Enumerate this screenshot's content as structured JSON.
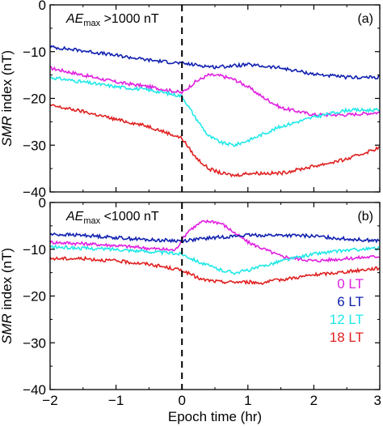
{
  "chart_data": {
    "type": "line",
    "xlabel": "Epoch time (hr)",
    "xlim": [
      -2,
      3
    ],
    "xticks": [
      "-2",
      "-1",
      "0",
      "1",
      "2",
      "3"
    ],
    "epoch_line_x": 0,
    "legend": {
      "placement": "bottom-right of panel (b)",
      "entries": [
        {
          "label": "0 LT",
          "color": "#e020e0"
        },
        {
          "label": "6 LT",
          "color": "#1020b0"
        },
        {
          "label": "12 LT",
          "color": "#20e8e8"
        },
        {
          "label": "18 LT",
          "color": "#e02020"
        }
      ]
    },
    "panels": [
      {
        "id": "a",
        "panel_label": "(a)",
        "condition_main": "AE",
        "condition_sub": "max",
        "condition_rest": " >1000 nT",
        "ylabel_italic": "SMR",
        "ylabel_rest": " index (nT)",
        "ylim": [
          -40,
          0
        ],
        "yticks": [
          "0",
          "-10",
          "-20",
          "-30",
          "-40"
        ],
        "series": [
          {
            "name": "0 LT",
            "color": "#e020e0",
            "x": [
              -2,
              -1.5,
              -1,
              -0.5,
              0,
              0.2,
              0.4,
              0.6,
              0.8,
              1.0,
              1.2,
              1.5,
              2.0,
              2.5,
              3.0
            ],
            "y": [
              -13.5,
              -15,
              -16.5,
              -17.5,
              -18.8,
              -16.5,
              -15,
              -15.2,
              -16,
              -17.5,
              -19.5,
              -22,
              -23.5,
              -23.5,
              -23
            ]
          },
          {
            "name": "6 LT",
            "color": "#1020b0",
            "x": [
              -2,
              -1.5,
              -1,
              -0.5,
              0,
              0.5,
              1.0,
              1.5,
              2.0,
              2.5,
              3.0
            ],
            "y": [
              -9,
              -9.8,
              -10.8,
              -11.8,
              -12.5,
              -13.3,
              -12.8,
              -13.5,
              -14.8,
              -15.5,
              -15.5
            ]
          },
          {
            "name": "12 LT",
            "color": "#20e8e8",
            "x": [
              -2,
              -1.5,
              -1,
              -0.5,
              0,
              0.2,
              0.4,
              0.6,
              0.8,
              1.0,
              1.5,
              2.0,
              2.5,
              3.0
            ],
            "y": [
              -15.5,
              -16.5,
              -17.5,
              -18.2,
              -19.5,
              -24,
              -28,
              -29.5,
              -30,
              -29,
              -26,
              -24,
              -22.5,
              -22.5
            ]
          },
          {
            "name": "18 LT",
            "color": "#e02020",
            "x": [
              -2,
              -1.5,
              -1,
              -0.5,
              0,
              0.2,
              0.4,
              0.6,
              0.8,
              1.0,
              1.5,
              2.0,
              2.5,
              3.0
            ],
            "y": [
              -21.5,
              -22.8,
              -24.5,
              -26,
              -28.5,
              -32.5,
              -35,
              -36,
              -36.5,
              -36,
              -36,
              -34.5,
              -33,
              -30.5
            ]
          }
        ]
      },
      {
        "id": "b",
        "panel_label": "(b)",
        "condition_main": "AE",
        "condition_sub": "max",
        "condition_rest": " <1000 nT",
        "ylabel_italic": "SMR",
        "ylabel_rest": " index (nT)",
        "ylim": [
          -40,
          0
        ],
        "yticks": [
          "0",
          "-10",
          "-20",
          "-30",
          "-40"
        ],
        "series": [
          {
            "name": "0 LT",
            "color": "#e020e0",
            "x": [
              -2,
              -1.5,
              -1,
              -0.5,
              -0.1,
              0,
              0.1,
              0.3,
              0.45,
              0.6,
              0.8,
              1.0,
              1.5,
              2.0,
              2.5,
              3.0
            ],
            "y": [
              -8.5,
              -8.8,
              -9.2,
              -9.8,
              -10.2,
              -8,
              -6,
              -4.2,
              -4,
              -4.5,
              -6.5,
              -8.5,
              -11.5,
              -12.5,
              -12,
              -11.5
            ]
          },
          {
            "name": "6 LT",
            "color": "#1020b0",
            "x": [
              -2,
              -1.5,
              -1,
              -0.5,
              0,
              0.5,
              1.0,
              1.5,
              2.0,
              2.5,
              3.0
            ],
            "y": [
              -6.8,
              -7,
              -7.5,
              -8,
              -8.2,
              -7.5,
              -7,
              -7,
              -7.2,
              -7.8,
              -8.2
            ]
          },
          {
            "name": "12 LT",
            "color": "#20e8e8",
            "x": [
              -2,
              -1.5,
              -1,
              -0.5,
              0,
              0.3,
              0.6,
              0.8,
              1.0,
              1.5,
              2.0,
              2.5,
              3.0
            ],
            "y": [
              -9.5,
              -9.8,
              -10,
              -10.5,
              -11,
              -13,
              -14.5,
              -15,
              -14.5,
              -12.5,
              -11,
              -10.2,
              -9.8
            ]
          },
          {
            "name": "18 LT",
            "color": "#e02020",
            "x": [
              -2,
              -1.5,
              -1,
              -0.5,
              0,
              0.3,
              0.6,
              1.0,
              1.2,
              1.5,
              2.0,
              2.5,
              3.0
            ],
            "y": [
              -12,
              -12,
              -12.5,
              -13.2,
              -14.5,
              -16.5,
              -17,
              -17,
              -17.2,
              -16.5,
              -15.5,
              -14.8,
              -14
            ]
          }
        ]
      }
    ]
  }
}
